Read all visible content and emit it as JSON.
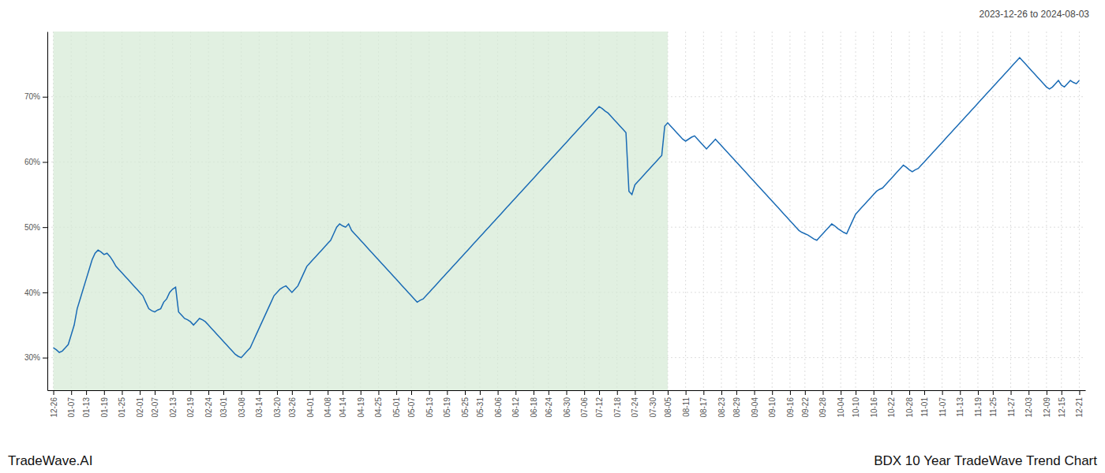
{
  "chart_data": {
    "type": "line",
    "title": "BDX 10 Year TradeWave Trend Chart",
    "subtitle": "2023-12-26 to 2024-08-03",
    "annotations": [
      "TradeWave.AI"
    ],
    "color": "#1a6bb5",
    "grid": true,
    "highlight": {
      "from": "12-26",
      "to": "08-05",
      "color": "#d4ead4"
    },
    "ylim": [
      25,
      80
    ],
    "yticks": [
      {
        "value": 30,
        "label": "30%"
      },
      {
        "value": 40,
        "label": "40%"
      },
      {
        "value": 50,
        "label": "50%"
      },
      {
        "value": 60,
        "label": "60%"
      },
      {
        "value": 70,
        "label": "70%"
      }
    ],
    "categories": [
      "12-26",
      null,
      null,
      null,
      null,
      null,
      "01-07",
      null,
      null,
      null,
      null,
      "01-13",
      null,
      null,
      null,
      null,
      null,
      "01-19",
      null,
      null,
      null,
      null,
      null,
      "01-25",
      null,
      null,
      null,
      null,
      null,
      "02-01",
      null,
      null,
      null,
      null,
      "02-07",
      null,
      null,
      null,
      null,
      null,
      "02-13",
      null,
      null,
      null,
      null,
      null,
      "02-19",
      null,
      null,
      null,
      null,
      null,
      "02-24",
      null,
      null,
      null,
      null,
      "03-01",
      null,
      null,
      null,
      null,
      null,
      "03-08",
      null,
      null,
      null,
      null,
      null,
      "03-14",
      null,
      null,
      null,
      null,
      null,
      "03-20",
      null,
      null,
      null,
      null,
      "03-26",
      null,
      null,
      null,
      null,
      null,
      "04-01",
      null,
      null,
      null,
      null,
      null,
      "04-08",
      null,
      null,
      null,
      null,
      "04-14",
      null,
      null,
      null,
      null,
      null,
      "04-19",
      null,
      null,
      null,
      null,
      null,
      "04-25",
      null,
      null,
      null,
      null,
      null,
      "05-01",
      null,
      null,
      null,
      null,
      "05-07",
      null,
      null,
      null,
      null,
      null,
      "05-13",
      null,
      null,
      null,
      null,
      null,
      "05-19",
      null,
      null,
      null,
      null,
      null,
      "05-25",
      null,
      null,
      null,
      null,
      "05-31",
      null,
      null,
      null,
      null,
      null,
      "06-06",
      null,
      null,
      null,
      null,
      null,
      "06-12",
      null,
      null,
      null,
      null,
      null,
      "06-18",
      null,
      null,
      null,
      null,
      "06-24",
      null,
      null,
      null,
      null,
      null,
      "06-30",
      null,
      null,
      null,
      null,
      null,
      "07-06",
      null,
      null,
      null,
      null,
      "07-12",
      null,
      null,
      null,
      null,
      null,
      "07-18",
      null,
      null,
      null,
      null,
      null,
      "07-24",
      null,
      null,
      null,
      null,
      null,
      "07-30",
      null,
      null,
      null,
      null,
      "08-05",
      null,
      null,
      null,
      null,
      null,
      "08-11",
      null,
      null,
      null,
      null,
      null,
      "08-17",
      null,
      null,
      null,
      null,
      null,
      "08-23",
      null,
      null,
      null,
      null,
      "08-29",
      null,
      null,
      null,
      null,
      null,
      "09-04",
      null,
      null,
      null,
      null,
      null,
      "09-10",
      null,
      null,
      null,
      null,
      null,
      "09-16",
      null,
      null,
      null,
      null,
      "09-22",
      null,
      null,
      null,
      null,
      null,
      "09-28",
      null,
      null,
      null,
      null,
      null,
      "10-04",
      null,
      null,
      null,
      null,
      "10-10",
      null,
      null,
      null,
      null,
      null,
      "10-16",
      null,
      null,
      null,
      null,
      null,
      "10-22",
      null,
      null,
      null,
      null,
      null,
      "10-28",
      null,
      null,
      null,
      null,
      "11-01",
      null,
      null,
      null,
      null,
      null,
      "11-07",
      null,
      null,
      null,
      null,
      null,
      "11-13",
      null,
      null,
      null,
      null,
      null,
      "11-19",
      null,
      null,
      null,
      null,
      "11-25",
      null,
      null,
      null,
      null,
      null,
      "11-27",
      null,
      null,
      null,
      null,
      null,
      "12-03",
      null,
      null,
      null,
      null,
      null,
      "12-09",
      null,
      null,
      null,
      null,
      "12-15",
      null,
      null,
      null,
      null,
      null,
      "12-21"
    ],
    "values": [
      31.5,
      31.2,
      30.8,
      31.0,
      31.5,
      32.0,
      33.5,
      35.0,
      37.5,
      39.0,
      40.5,
      42.0,
      43.5,
      45.0,
      46.0,
      46.5,
      46.2,
      45.8,
      46.0,
      45.5,
      44.8,
      44.0,
      43.5,
      43.0,
      42.5,
      42.0,
      41.5,
      41.0,
      40.5,
      40.0,
      39.5,
      38.5,
      37.5,
      37.2,
      37.0,
      37.3,
      37.5,
      38.5,
      39.0,
      40.0,
      40.5,
      40.8,
      37.0,
      36.5,
      36.0,
      35.8,
      35.5,
      35.0,
      35.5,
      36.0,
      35.8,
      35.5,
      35.0,
      34.5,
      34.0,
      33.5,
      33.0,
      32.5,
      32.0,
      31.5,
      31.0,
      30.5,
      30.2,
      30.0,
      30.5,
      31.0,
      31.5,
      32.5,
      33.5,
      34.5,
      35.5,
      36.5,
      37.5,
      38.5,
      39.5,
      40.0,
      40.5,
      40.8,
      41.0,
      40.5,
      40.0,
      40.5,
      41.0,
      42.0,
      43.0,
      44.0,
      44.5,
      45.0,
      45.5,
      46.0,
      46.5,
      47.0,
      47.5,
      48.0,
      49.0,
      50.0,
      50.5,
      50.2,
      50.0,
      50.5,
      49.5,
      49.0,
      48.5,
      48.0,
      47.5,
      47.0,
      46.5,
      46.0,
      45.5,
      45.0,
      44.5,
      44.0,
      43.5,
      43.0,
      42.5,
      42.0,
      41.5,
      41.0,
      40.5,
      40.0,
      39.5,
      39.0,
      38.5,
      38.8,
      39.0,
      39.5,
      40.0,
      40.5,
      41.0,
      41.5,
      42.0,
      42.5,
      43.0,
      43.5,
      44.0,
      44.5,
      45.0,
      45.5,
      46.0,
      46.5,
      47.0,
      47.5,
      48.0,
      48.5,
      49.0,
      49.5,
      50.0,
      50.5,
      51.0,
      51.5,
      52.0,
      52.5,
      53.0,
      53.5,
      54.0,
      54.5,
      55.0,
      55.5,
      56.0,
      56.5,
      57.0,
      57.5,
      58.0,
      58.5,
      59.0,
      59.5,
      60.0,
      60.5,
      61.0,
      61.5,
      62.0,
      62.5,
      63.0,
      63.5,
      64.0,
      64.5,
      65.0,
      65.5,
      66.0,
      66.5,
      67.0,
      67.5,
      68.0,
      68.5,
      68.2,
      67.8,
      67.5,
      67.0,
      66.5,
      66.0,
      65.5,
      65.0,
      64.5,
      55.5,
      55.0,
      56.5,
      57.0,
      57.5,
      58.0,
      58.5,
      59.0,
      59.5,
      60.0,
      60.5,
      61.0,
      65.5,
      66.0,
      65.5,
      65.0,
      64.5,
      64.0,
      63.5,
      63.2,
      63.5,
      63.8,
      64.0,
      63.5,
      63.0,
      62.5,
      62.0,
      62.5,
      63.0,
      63.5,
      63.0,
      62.5,
      62.0,
      61.5,
      61.0,
      60.5,
      60.0,
      59.5,
      59.0,
      58.5,
      58.0,
      57.5,
      57.0,
      56.5,
      56.0,
      55.5,
      55.0,
      54.5,
      54.0,
      53.5,
      53.0,
      52.5,
      52.0,
      51.5,
      51.0,
      50.5,
      50.0,
      49.5,
      49.2,
      49.0,
      48.8,
      48.5,
      48.2,
      48.0,
      48.5,
      49.0,
      49.5,
      50.0,
      50.5,
      50.2,
      49.8,
      49.5,
      49.2,
      49.0,
      50.0,
      51.0,
      52.0,
      52.5,
      53.0,
      53.5,
      54.0,
      54.5,
      55.0,
      55.5,
      55.8,
      56.0,
      56.5,
      57.0,
      57.5,
      58.0,
      58.5,
      59.0,
      59.5,
      59.2,
      58.8,
      58.5,
      58.8,
      59.0,
      59.5,
      60.0,
      60.5,
      61.0,
      61.5,
      62.0,
      62.5,
      63.0,
      63.5,
      64.0,
      64.5,
      65.0,
      65.5,
      66.0,
      66.5,
      67.0,
      67.5,
      68.0,
      68.5,
      69.0,
      69.5,
      70.0,
      70.5,
      71.0,
      71.5,
      72.0,
      72.5,
      73.0,
      73.5,
      74.0,
      74.5,
      75.0,
      75.5,
      76.0,
      75.5,
      75.0,
      74.5,
      74.0,
      73.5,
      73.0,
      72.5,
      72.0,
      71.5,
      71.2,
      71.5,
      72.0,
      72.5,
      71.8,
      71.5,
      72.0,
      72.5,
      72.2,
      72.0,
      72.5
    ]
  }
}
